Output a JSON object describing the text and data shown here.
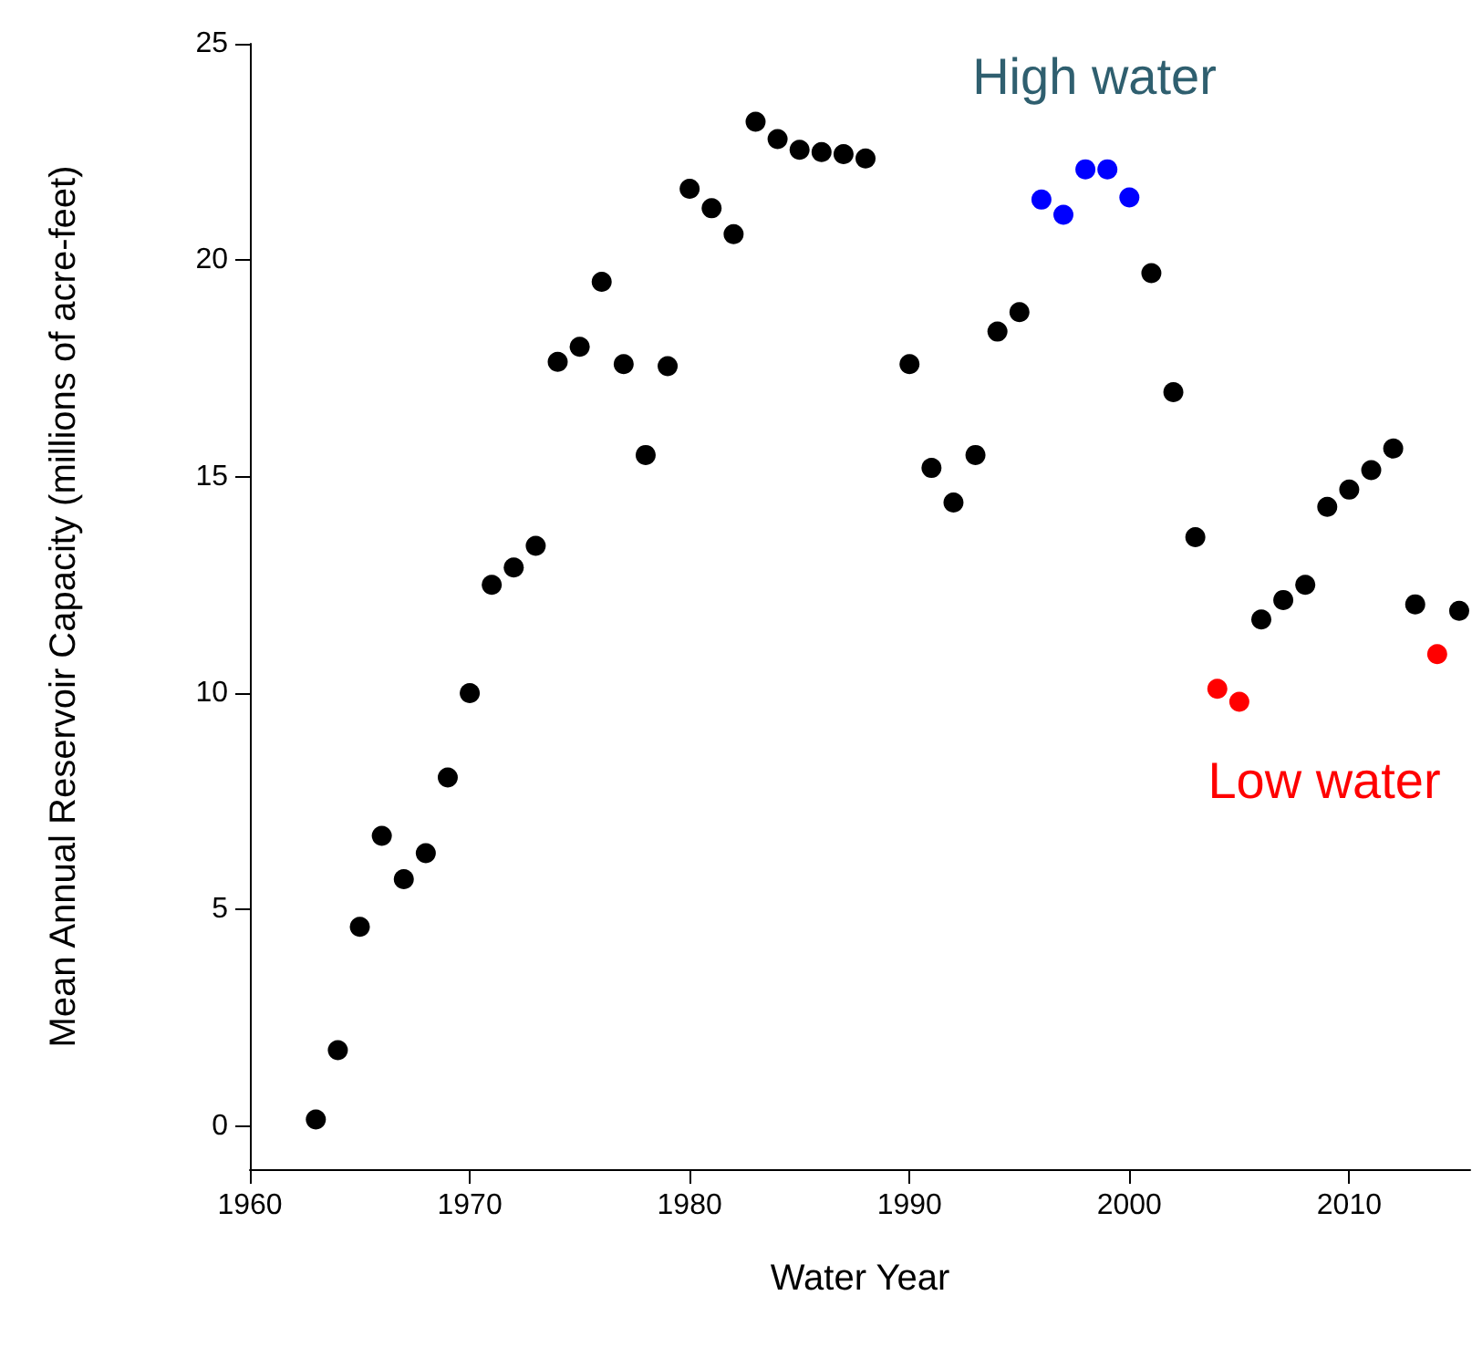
{
  "chart_data": {
    "type": "scatter",
    "xlabel": "Water Year",
    "ylabel": "Mean Annual Reservoir Capacity (millions of acre-feet)",
    "series": [
      {
        "color": "#000000",
        "x": [
          1963,
          1964,
          1965,
          1966,
          1967,
          1968,
          1969,
          1970,
          1971,
          1972,
          1973,
          1974,
          1975,
          1976,
          1977,
          1978,
          1979,
          1980,
          1981,
          1982,
          1983,
          1984,
          1985,
          1986,
          1987,
          1988,
          1990,
          1991,
          1992,
          1993,
          1994,
          1995,
          2001,
          2002,
          2003,
          2006,
          2007,
          2008,
          2009,
          2010,
          2011,
          2012,
          2013,
          2015
        ],
        "values": [
          0.15,
          1.75,
          4.6,
          6.7,
          5.7,
          6.3,
          8.05,
          10.0,
          12.5,
          12.9,
          13.4,
          17.65,
          18.0,
          19.5,
          17.6,
          15.5,
          17.55,
          21.65,
          21.2,
          20.6,
          23.2,
          22.8,
          22.55,
          22.5,
          22.45,
          22.35,
          17.6,
          15.2,
          14.4,
          15.5,
          18.35,
          18.8,
          19.7,
          16.95,
          13.6,
          11.7,
          12.15,
          12.5,
          14.3,
          14.7,
          15.15,
          15.65,
          12.05,
          11.9
        ]
      },
      {
        "color": "#0000ff",
        "x": [
          1996,
          1997,
          1998,
          1999,
          2000
        ],
        "values": [
          21.4,
          21.05,
          22.1,
          22.1,
          21.45
        ]
      },
      {
        "color": "#ff0000",
        "x": [
          2004,
          2005,
          2014
        ],
        "values": [
          10.1,
          9.8,
          10.9
        ]
      }
    ],
    "annotations": [
      "High water",
      "Low water"
    ],
    "xlim": [
      1960,
      2015.5
    ],
    "xticks": [
      1960,
      1970,
      1980,
      1990,
      2000,
      2010
    ],
    "ylim": [
      -1,
      25
    ],
    "yticks": [
      0,
      5,
      10,
      15,
      20,
      25
    ],
    "grid": false,
    "marker": "circle"
  }
}
